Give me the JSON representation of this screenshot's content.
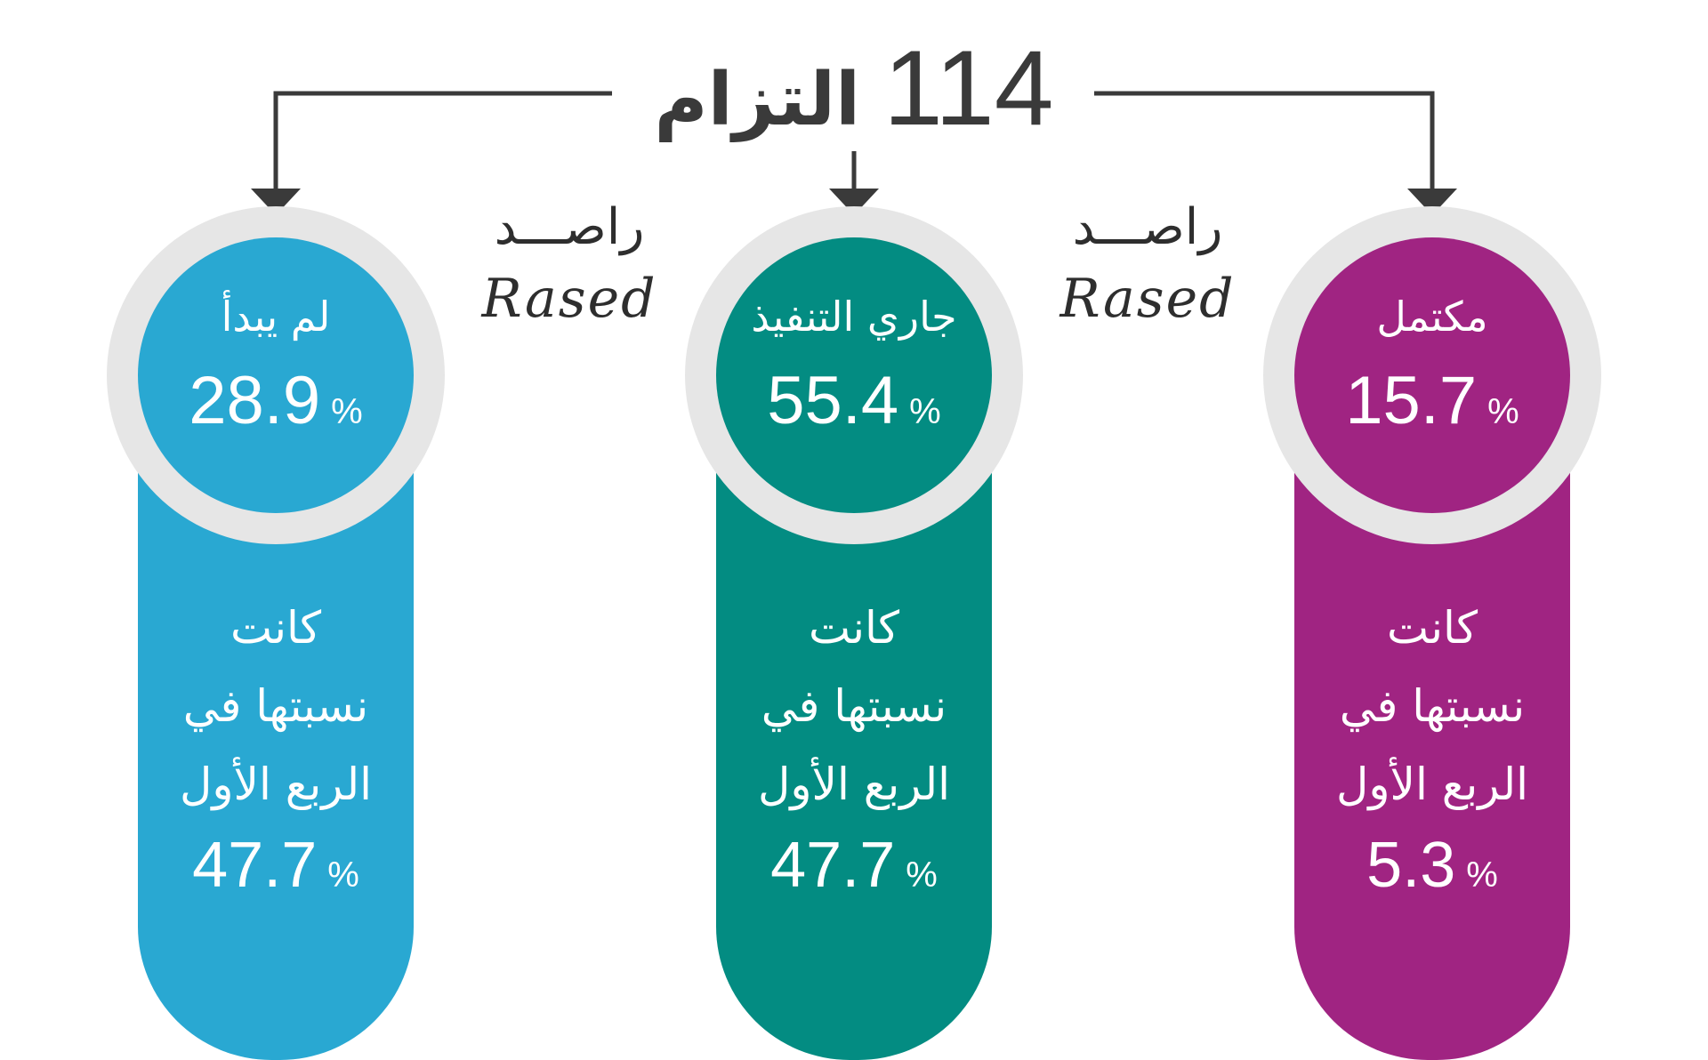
{
  "title": {
    "number": "114",
    "word": "التزام"
  },
  "watermark": {
    "arabic": "راصـــد",
    "latin": "Rased"
  },
  "percent_sign": "%",
  "colors": {
    "not_started": "#29A8D2",
    "in_progress": "#038C82",
    "completed": "#A02482",
    "ring": "#E6E6E6",
    "line": "#3A3A3A"
  },
  "cards": [
    {
      "label": "لم يبدأ",
      "value": "28.9",
      "note_lines": [
        "كانت",
        "نسبتها في",
        "الربع الأول"
      ],
      "prev_value": "47.7"
    },
    {
      "label": "جاري التنفيذ",
      "value": "55.4",
      "note_lines": [
        "كانت",
        "نسبتها في",
        "الربع الأول"
      ],
      "prev_value": "47.7"
    },
    {
      "label": "مكتمل",
      "value": "15.7",
      "note_lines": [
        "كانت",
        "نسبتها في",
        "الربع الأول"
      ],
      "prev_value": "5.3"
    }
  ]
}
